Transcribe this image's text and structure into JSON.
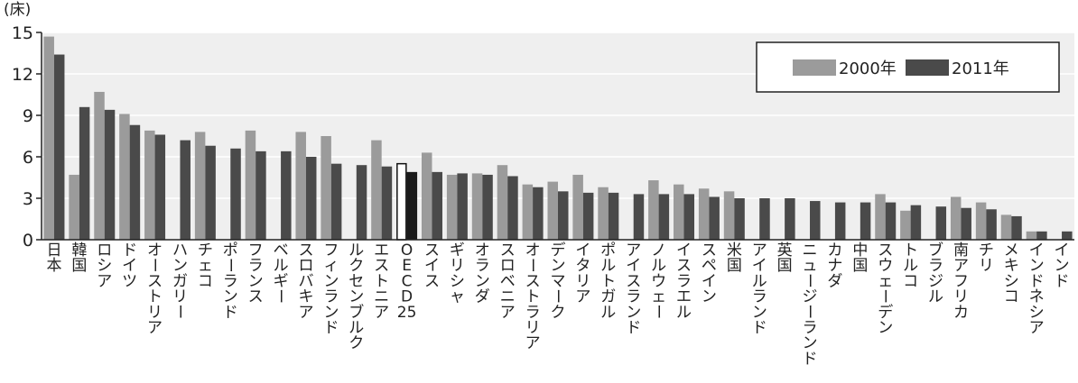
{
  "colors": {
    "background": "#ffffff",
    "plot_background": "#efefef",
    "gridline": "#ffffff",
    "series_2000": "#9b9b9b",
    "series_2011": "#4a4a4a",
    "oecd_2000_fill": "#ffffff",
    "oecd_2000_stroke": "#111111",
    "oecd_2011": "#1a1a1a",
    "axis": "#222222"
  },
  "chart_data": {
    "type": "bar",
    "title": "",
    "xlabel": "",
    "ylabel": "(床)",
    "ylim": [
      0,
      15
    ],
    "yticks": [
      0,
      3,
      6,
      9,
      12,
      15
    ],
    "grid": "horizontal",
    "legend_position": "top-right",
    "categories": [
      "日本",
      "韓国",
      "ロシア",
      "ドイツ",
      "オーストリア",
      "ハンガリー",
      "チェコ",
      "ポーランド",
      "フランス",
      "ベルギー",
      "スロバキア",
      "フィンランド",
      "ルクセンブルク",
      "エストニア",
      "OECD25",
      "スイス",
      "ギリシャ",
      "オランダ",
      "スロベニア",
      "オーストラリア",
      "デンマーク",
      "イタリア",
      "ポルトガル",
      "アイスランド",
      "ノルウェー",
      "イスラエル",
      "スペイン",
      "米国",
      "アイルランド",
      "英国",
      "ニュージーランド",
      "カナダ",
      "中国",
      "スウェーデン",
      "トルコ",
      "ブラジル",
      "南アフリカ",
      "チリ",
      "メキシコ",
      "インドネシア",
      "インド"
    ],
    "highlight_category": "OECD25",
    "series": [
      {
        "name": "2000年",
        "values": [
          14.7,
          4.7,
          10.7,
          9.1,
          7.9,
          null,
          7.8,
          null,
          7.9,
          null,
          7.8,
          7.5,
          null,
          7.2,
          5.5,
          6.3,
          4.7,
          4.8,
          5.4,
          4.0,
          4.2,
          4.7,
          3.8,
          null,
          4.3,
          4.0,
          3.7,
          3.5,
          null,
          null,
          null,
          null,
          null,
          3.3,
          2.1,
          null,
          3.1,
          2.7,
          1.8,
          0.6,
          null
        ]
      },
      {
        "name": "2011年",
        "values": [
          13.4,
          9.6,
          9.4,
          8.3,
          7.6,
          7.2,
          6.8,
          6.6,
          6.4,
          6.4,
          6.0,
          5.5,
          5.4,
          5.3,
          4.9,
          4.9,
          4.8,
          4.7,
          4.6,
          3.8,
          3.5,
          3.4,
          3.4,
          3.3,
          3.3,
          3.3,
          3.1,
          3.0,
          3.0,
          3.0,
          2.8,
          2.7,
          2.7,
          2.7,
          2.5,
          2.4,
          2.3,
          2.2,
          1.7,
          0.6,
          0.6
        ]
      }
    ]
  }
}
